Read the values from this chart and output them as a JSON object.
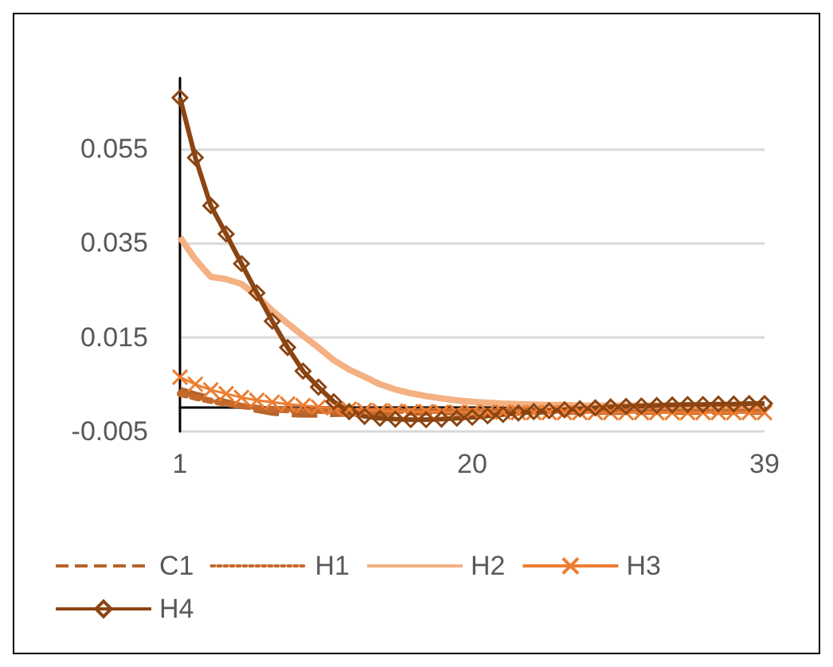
{
  "chart_data": {
    "type": "line",
    "categories": [
      "1",
      null,
      null,
      null,
      null,
      null,
      null,
      null,
      null,
      null,
      null,
      null,
      null,
      null,
      null,
      null,
      null,
      null,
      null,
      "20",
      null,
      null,
      null,
      null,
      null,
      null,
      null,
      null,
      null,
      null,
      null,
      null,
      null,
      null,
      null,
      null,
      null,
      null,
      "39"
    ],
    "ylim": [
      -0.005,
      0.07
    ],
    "yticks": [
      -0.005,
      0.015,
      0.035,
      0.055
    ],
    "grid": "y",
    "legend": "bottom",
    "series": [
      {
        "name": "C1",
        "color": "#b5642a",
        "line_style": "dashed",
        "marker": "none",
        "values": [
          0.0038,
          0.0028,
          0.002,
          0.0012,
          0.0004,
          -0.0004,
          -0.001,
          -0.0013,
          -0.0014,
          -0.0014,
          -0.0013,
          -0.0012,
          -0.0011,
          -0.0011,
          -0.001,
          -0.001,
          -0.001,
          -0.0009,
          -0.0009,
          -0.0009,
          -0.0009,
          -0.0009,
          -0.0008,
          -0.0008,
          -0.0008,
          -0.0008,
          -0.0008,
          -0.0008,
          -0.0008,
          -0.0008,
          -0.0008,
          -0.0008,
          -0.0008,
          -0.0008,
          -0.0008,
          -0.0008,
          -0.0008,
          -0.0008,
          -0.0008
        ]
      },
      {
        "name": "H1",
        "color": "#c5692d",
        "line_style": "dotted",
        "marker": "none",
        "values": [
          0.003,
          0.0022,
          0.0015,
          0.0009,
          0.0004,
          0,
          -0.0003,
          -0.0005,
          -0.0006,
          -0.0006,
          -0.0006,
          -0.0006,
          -0.0006,
          -0.0006,
          -0.0006,
          -0.0006,
          -0.0006,
          -0.0006,
          -0.0006,
          -0.0006,
          -0.0006,
          -0.0006,
          -0.0006,
          -0.0006,
          -0.0006,
          -0.0006,
          -0.0006,
          -0.0006,
          -0.0006,
          -0.0006,
          -0.0006,
          -0.0006,
          -0.0006,
          -0.0006,
          -0.0006,
          -0.0006,
          -0.0006,
          -0.0006,
          -0.0006
        ]
      },
      {
        "name": "H2",
        "color": "#f4b183",
        "line_style": "solid",
        "marker": "none",
        "values": [
          0.0362,
          0.0315,
          0.0278,
          0.0273,
          0.0263,
          0.0238,
          0.0206,
          0.0179,
          0.0153,
          0.0128,
          0.0101,
          0.0081,
          0.0066,
          0.005,
          0.0039,
          0.0031,
          0.0025,
          0.002,
          0.0016,
          0.0013,
          0.0011,
          0.0009,
          0.0008,
          0.0007,
          0.0006,
          0.0006,
          0.0005,
          0.0005,
          0.0005,
          0.0005,
          0.0005,
          0.0005,
          0.0005,
          0.0005,
          0.0005,
          0.0005,
          0.0005,
          0.0005,
          0.0005
        ]
      },
      {
        "name": "H3",
        "color": "#ed7d31",
        "line_style": "solid",
        "marker": "cross",
        "values": [
          0.0065,
          0.005,
          0.0038,
          0.003,
          0.0022,
          0.0016,
          0.0012,
          0.0008,
          0.0005,
          0.0002,
          0,
          -0.0003,
          -0.0005,
          -0.0006,
          -0.0007,
          -0.0008,
          -0.0008,
          -0.0009,
          -0.0009,
          -0.0009,
          -0.0009,
          -0.0009,
          -0.001,
          -0.001,
          -0.001,
          -0.001,
          -0.001,
          -0.001,
          -0.001,
          -0.001,
          -0.001,
          -0.001,
          -0.001,
          -0.001,
          -0.001,
          -0.001,
          -0.001,
          -0.001,
          -0.001
        ]
      },
      {
        "name": "H4",
        "color": "#8b4513",
        "line_style": "solid",
        "marker": "diamond",
        "values": [
          0.0658,
          0.0531,
          0.0429,
          0.0369,
          0.0306,
          0.0244,
          0.0184,
          0.0128,
          0.0078,
          0.0044,
          0.0013,
          -0.0008,
          -0.0018,
          -0.0022,
          -0.0024,
          -0.0025,
          -0.0025,
          -0.0024,
          -0.0022,
          -0.002,
          -0.0017,
          -0.0014,
          -0.0011,
          -0.0008,
          -0.0006,
          -0.0004,
          -0.0002,
          0,
          0.0002,
          0.0003,
          0.0004,
          0.0005,
          0.0006,
          0.0007,
          0.0007,
          0.0008,
          0.0008,
          0.0009,
          0.0009
        ]
      }
    ]
  }
}
